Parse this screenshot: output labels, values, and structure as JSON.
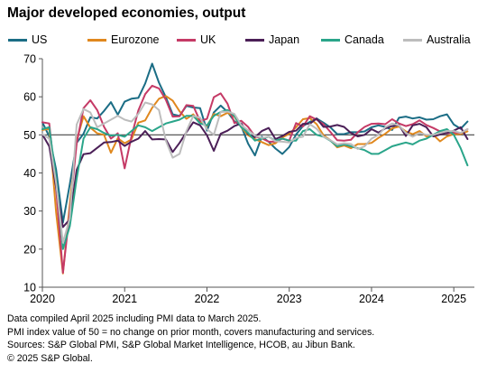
{
  "title": "Major developed economies, output",
  "notes": [
    "Data compiled April 2025 including PMI data to March 2025.",
    "PMI index value of 50 = no change on prior month, covers manufacturing and services.",
    "Sources: S&P Global PMI, S&P Global Market Intelligence, HCOB, au Jibun Bank.",
    "© 2025 S&P Global."
  ],
  "chart_data": {
    "type": "line",
    "title": "Major developed economies, output",
    "xlabel": "",
    "ylabel": "",
    "xlim": [
      2020.0,
      2025.25
    ],
    "ylim": [
      10,
      70
    ],
    "yticks": [
      10,
      20,
      30,
      40,
      50,
      60,
      70
    ],
    "xticks": [
      2020,
      2021,
      2022,
      2023,
      2024,
      2025
    ],
    "grid": false,
    "reference_line": 50,
    "legend_position": "top",
    "x": [
      "2020-01",
      "2020-02",
      "2020-03",
      "2020-04",
      "2020-05",
      "2020-06",
      "2020-07",
      "2020-08",
      "2020-09",
      "2020-10",
      "2020-11",
      "2020-12",
      "2021-01",
      "2021-02",
      "2021-03",
      "2021-04",
      "2021-05",
      "2021-06",
      "2021-07",
      "2021-08",
      "2021-09",
      "2021-10",
      "2021-11",
      "2021-12",
      "2022-01",
      "2022-02",
      "2022-03",
      "2022-04",
      "2022-05",
      "2022-06",
      "2022-07",
      "2022-08",
      "2022-09",
      "2022-10",
      "2022-11",
      "2022-12",
      "2023-01",
      "2023-02",
      "2023-03",
      "2023-04",
      "2023-05",
      "2023-06",
      "2023-07",
      "2023-08",
      "2023-09",
      "2023-10",
      "2023-11",
      "2023-12",
      "2024-01",
      "2024-02",
      "2024-03",
      "2024-04",
      "2024-05",
      "2024-06",
      "2024-07",
      "2024-08",
      "2024-09",
      "2024-10",
      "2024-11",
      "2024-12",
      "2025-01",
      "2025-02",
      "2025-03"
    ],
    "series": [
      {
        "name": "US",
        "color": "#1b6d85",
        "values": [
          53.3,
          49.6,
          40.9,
          27.0,
          37.0,
          47.9,
          50.3,
          54.6,
          54.3,
          56.3,
          58.6,
          55.3,
          58.7,
          59.5,
          59.7,
          63.5,
          68.7,
          63.7,
          59.9,
          55.4,
          55.0,
          57.6,
          57.2,
          57.0,
          51.1,
          55.9,
          57.7,
          56.0,
          53.6,
          52.3,
          47.7,
          44.6,
          49.5,
          48.2,
          46.4,
          45.0,
          46.8,
          50.1,
          52.3,
          53.4,
          54.3,
          53.2,
          52.0,
          50.2,
          50.2,
          50.7,
          50.7,
          50.9,
          52.0,
          52.5,
          52.1,
          51.3,
          54.5,
          54.8,
          54.3,
          54.6,
          54.0,
          54.1,
          54.9,
          55.4,
          52.7,
          51.6,
          53.5
        ]
      },
      {
        "name": "Eurozone",
        "color": "#e0881e",
        "values": [
          51.3,
          51.6,
          29.7,
          13.6,
          31.9,
          48.5,
          54.9,
          51.9,
          50.4,
          50.0,
          45.3,
          49.1,
          47.8,
          48.8,
          53.2,
          53.8,
          57.1,
          59.5,
          60.2,
          59.0,
          56.2,
          54.2,
          55.4,
          53.3,
          52.3,
          55.5,
          54.9,
          55.8,
          54.8,
          52.0,
          49.9,
          48.9,
          48.1,
          47.3,
          47.8,
          49.3,
          50.3,
          52.0,
          54.1,
          54.4,
          52.8,
          49.9,
          48.6,
          46.7,
          47.2,
          46.5,
          47.6,
          47.6,
          47.9,
          49.2,
          50.3,
          51.7,
          52.2,
          50.9,
          50.2,
          51.0,
          49.6,
          50.0,
          48.3,
          49.6,
          50.2,
          50.2,
          50.9
        ]
      },
      {
        "name": "UK",
        "color": "#c53a66",
        "values": [
          53.3,
          53.0,
          36.0,
          13.8,
          30.0,
          47.7,
          57.0,
          59.1,
          56.5,
          52.1,
          49.0,
          50.4,
          41.2,
          49.6,
          56.4,
          60.7,
          62.9,
          62.2,
          59.2,
          54.8,
          54.9,
          57.8,
          57.6,
          53.6,
          54.2,
          59.9,
          60.9,
          58.2,
          53.1,
          53.7,
          52.1,
          49.6,
          49.1,
          48.2,
          48.2,
          49.0,
          48.5,
          53.1,
          52.2,
          54.9,
          54.0,
          52.8,
          50.8,
          48.6,
          48.5,
          48.7,
          50.7,
          52.1,
          52.9,
          53.0,
          52.8,
          54.1,
          53.0,
          52.3,
          52.8,
          53.8,
          52.6,
          51.8,
          50.9,
          50.4,
          50.6,
          50.5,
          51.5
        ]
      },
      {
        "name": "Japan",
        "color": "#4b1f57",
        "values": [
          50.1,
          47.0,
          36.2,
          25.8,
          27.8,
          40.8,
          44.9,
          45.2,
          46.6,
          48.0,
          48.1,
          48.5,
          47.1,
          48.2,
          49.0,
          51.0,
          48.8,
          48.9,
          48.8,
          45.5,
          47.9,
          50.7,
          53.3,
          52.5,
          49.9,
          45.8,
          50.3,
          51.1,
          52.3,
          53.0,
          50.2,
          49.4,
          51.0,
          51.8,
          48.9,
          49.7,
          50.8,
          51.1,
          52.9,
          52.9,
          54.3,
          52.1,
          52.2,
          52.6,
          52.1,
          50.5,
          49.6,
          50.0,
          51.5,
          50.6,
          51.7,
          52.3,
          52.6,
          49.7,
          52.5,
          52.9,
          52.0,
          49.6,
          50.1,
          50.5,
          51.1,
          52.0,
          48.9
        ]
      },
      {
        "name": "Canada",
        "color": "#2aa58a",
        "values": [
          51.5,
          52.0,
          38.5,
          20.0,
          26.0,
          38.5,
          49.0,
          52.0,
          51.5,
          50.5,
          49.8,
          50.0,
          49.5,
          51.0,
          52.5,
          52.0,
          51.0,
          52.0,
          53.0,
          53.5,
          54.0,
          55.0,
          55.0,
          53.0,
          52.5,
          55.0,
          56.0,
          56.5,
          55.0,
          52.0,
          50.5,
          48.5,
          49.0,
          49.5,
          48.5,
          49.0,
          48.5,
          48.5,
          51.0,
          51.5,
          50.0,
          49.5,
          48.5,
          47.0,
          47.5,
          47.0,
          46.5,
          46.0,
          45.0,
          45.0,
          46.0,
          47.0,
          47.5,
          48.0,
          47.5,
          48.5,
          49.0,
          50.0,
          51.0,
          51.5,
          50.0,
          46.5,
          42.0
        ]
      },
      {
        "name": "Australia",
        "color": "#bdbdbd",
        "values": [
          50.2,
          49.0,
          37.4,
          21.7,
          28.1,
          52.7,
          56.8,
          55.9,
          52.0,
          53.0,
          54.0,
          55.0,
          54.0,
          53.5,
          55.5,
          58.5,
          58.0,
          56.5,
          48.5,
          44.0,
          45.0,
          51.0,
          55.0,
          54.5,
          51.5,
          50.0,
          56.0,
          56.1,
          55.5,
          52.6,
          51.2,
          49.8,
          49.2,
          49.5,
          48.3,
          48.2,
          48.0,
          49.2,
          49.5,
          52.8,
          51.6,
          49.5,
          48.6,
          47.5,
          47.8,
          47.6,
          46.3,
          47.0,
          49.0,
          50.0,
          52.0,
          53.0,
          52.5,
          50.5,
          49.5,
          50.5,
          50.0,
          50.0,
          50.5,
          51.0,
          51.0,
          50.5,
          51.5
        ]
      }
    ]
  }
}
